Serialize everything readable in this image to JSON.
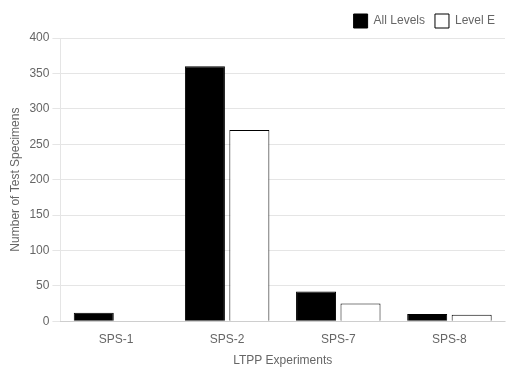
{
  "chart_data": {
    "type": "bar",
    "xlabel": "LTPP Experiments",
    "ylabel": "Number of Test Specimens",
    "categories": [
      "SPS-1",
      "SPS-2",
      "SPS-7",
      "SPS-8"
    ],
    "series": [
      {
        "name": "All Levels",
        "color": "#000000",
        "values": [
          12,
          360,
          42,
          10
        ]
      },
      {
        "name": "Level E",
        "color": "#ffffff",
        "values": [
          0,
          270,
          25,
          9
        ]
      }
    ],
    "ylim": [
      0,
      400
    ],
    "yticks": [
      0,
      50,
      100,
      150,
      200,
      250,
      300,
      350,
      400
    ],
    "grid": true,
    "legend": "upper right"
  }
}
